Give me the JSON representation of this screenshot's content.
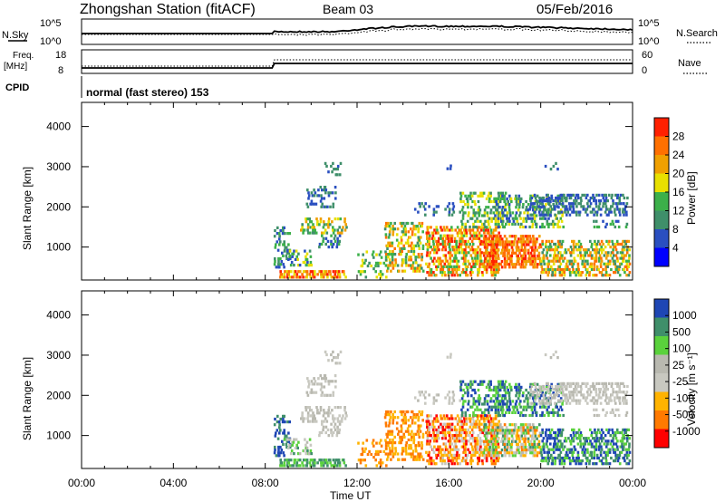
{
  "header": {
    "station": "Zhongshan Station (fitACF)",
    "beam": "Beam 03",
    "date": "05/Feb/2016"
  },
  "meta_panels": {
    "nsky_label": "N.Sky",
    "nsearch_label": "N.Search",
    "freq_label": "Freq.",
    "freq_unit": "[MHz]",
    "cpid_label": "CPID",
    "nave_label": "Nave",
    "nsky_ticks": [
      "10^5",
      "10^0"
    ],
    "nsearch_ticks": [
      "10^5",
      "10^0"
    ],
    "freq_ticks": [
      "18",
      "8"
    ],
    "nave_ticks": [
      "60",
      "0"
    ],
    "cpid_text": "normal (fast stereo) 153"
  },
  "colors": {
    "power": [
      "#0000ff",
      "#2a4fc0",
      "#3f8f6a",
      "#3cb04a",
      "#e8e000",
      "#f0a000",
      "#ff7000",
      "#ff2000"
    ],
    "velocity": [
      "#ff0000",
      "#ff7a00",
      "#ffb300",
      "#c8c8c0",
      "#b9b9b0",
      "#5ad23c",
      "#3f8f6a",
      "#1e46b4"
    ]
  },
  "chart_data": [
    {
      "type": "heatmap",
      "panel": "power",
      "ylabel": "Slant Range [km]",
      "yticks": [
        "1000",
        "2000",
        "3000",
        "4000"
      ],
      "ylim": [
        180,
        4600
      ],
      "colorbar_label": "Power [dB]",
      "colorbar_ticks": [
        "4",
        "8",
        "12",
        "16",
        "20",
        "24",
        "28"
      ],
      "xlim_hours": [
        0,
        24
      ]
    },
    {
      "type": "heatmap",
      "panel": "velocity",
      "ylabel": "Slant Range [km]",
      "yticks": [
        "1000",
        "2000",
        "3000",
        "4000"
      ],
      "ylim": [
        180,
        4600
      ],
      "colorbar_label": "Velocity [m s⁻¹]",
      "colorbar_ticks": [
        "1000",
        "500",
        "100",
        "25",
        "-25",
        "-100",
        "-500",
        "-1000"
      ],
      "xlabel": "Time UT",
      "xticks": [
        "00:00",
        "04:00",
        "08:00",
        "12:00",
        "16:00",
        "20:00",
        "00:00"
      ]
    }
  ]
}
